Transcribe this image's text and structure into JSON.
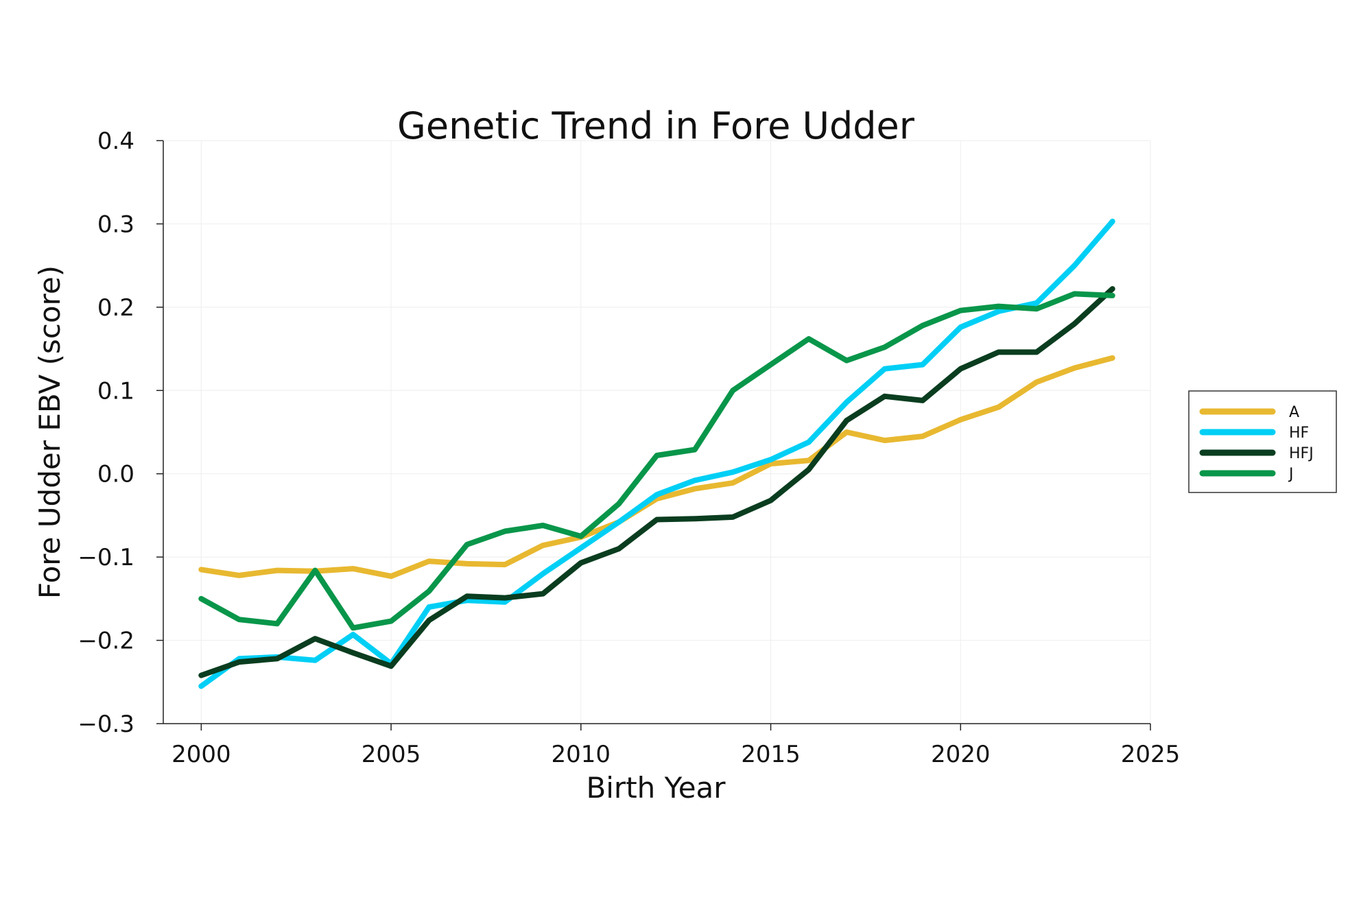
{
  "chart_data": {
    "type": "line",
    "title": "Genetic Trend in Fore Udder",
    "xlabel": "Birth Year",
    "ylabel": "Fore Udder EBV (score)",
    "xlim": [
      1999,
      2025
    ],
    "ylim": [
      -0.3,
      0.4
    ],
    "xticks": [
      2000,
      2005,
      2010,
      2015,
      2020,
      2025
    ],
    "xtick_labels": [
      "2000",
      "2005",
      "2010",
      "2015",
      "2020",
      "2025"
    ],
    "yticks": [
      -0.3,
      -0.2,
      -0.1,
      0.0,
      0.1,
      0.2,
      0.3,
      0.4
    ],
    "ytick_labels": [
      "−0.3",
      "−0.2",
      "−0.1",
      "0.0",
      "0.1",
      "0.2",
      "0.3",
      "0.4"
    ],
    "grid": true,
    "legend_position": "right",
    "x": [
      2000,
      2001,
      2002,
      2003,
      2004,
      2005,
      2006,
      2007,
      2008,
      2009,
      2010,
      2011,
      2012,
      2013,
      2014,
      2015,
      2016,
      2017,
      2018,
      2019,
      2020,
      2021,
      2022,
      2023,
      2024
    ],
    "series": [
      {
        "name": "A",
        "color": "#E8B830",
        "values": [
          -0.115,
          -0.122,
          -0.116,
          -0.117,
          -0.114,
          -0.123,
          -0.105,
          -0.108,
          -0.109,
          -0.086,
          -0.076,
          -0.058,
          -0.03,
          -0.018,
          -0.011,
          0.012,
          0.016,
          0.05,
          0.04,
          0.045,
          0.065,
          0.08,
          0.11,
          0.127,
          0.139
        ]
      },
      {
        "name": "HF",
        "color": "#00CFF5",
        "values": [
          -0.255,
          -0.222,
          -0.22,
          -0.224,
          -0.193,
          -0.228,
          -0.16,
          -0.152,
          -0.154,
          -0.12,
          -0.089,
          -0.058,
          -0.025,
          -0.008,
          0.002,
          0.017,
          0.038,
          0.086,
          0.126,
          0.131,
          0.176,
          0.195,
          0.205,
          0.25,
          0.303
        ]
      },
      {
        "name": "HFJ",
        "color": "#0A3D1F",
        "values": [
          -0.242,
          -0.226,
          -0.222,
          -0.198,
          -0.215,
          -0.231,
          -0.176,
          -0.147,
          -0.149,
          -0.144,
          -0.107,
          -0.09,
          -0.055,
          -0.054,
          -0.052,
          -0.032,
          0.005,
          0.064,
          0.093,
          0.088,
          0.126,
          0.146,
          0.146,
          0.18,
          0.222
        ]
      },
      {
        "name": "J",
        "color": "#08964A",
        "values": [
          -0.15,
          -0.175,
          -0.18,
          -0.116,
          -0.185,
          -0.177,
          -0.141,
          -0.085,
          -0.069,
          -0.062,
          -0.075,
          -0.036,
          0.022,
          0.029,
          0.1,
          0.131,
          0.162,
          0.136,
          0.152,
          0.178,
          0.196,
          0.201,
          0.198,
          0.216,
          0.214
        ]
      }
    ]
  }
}
